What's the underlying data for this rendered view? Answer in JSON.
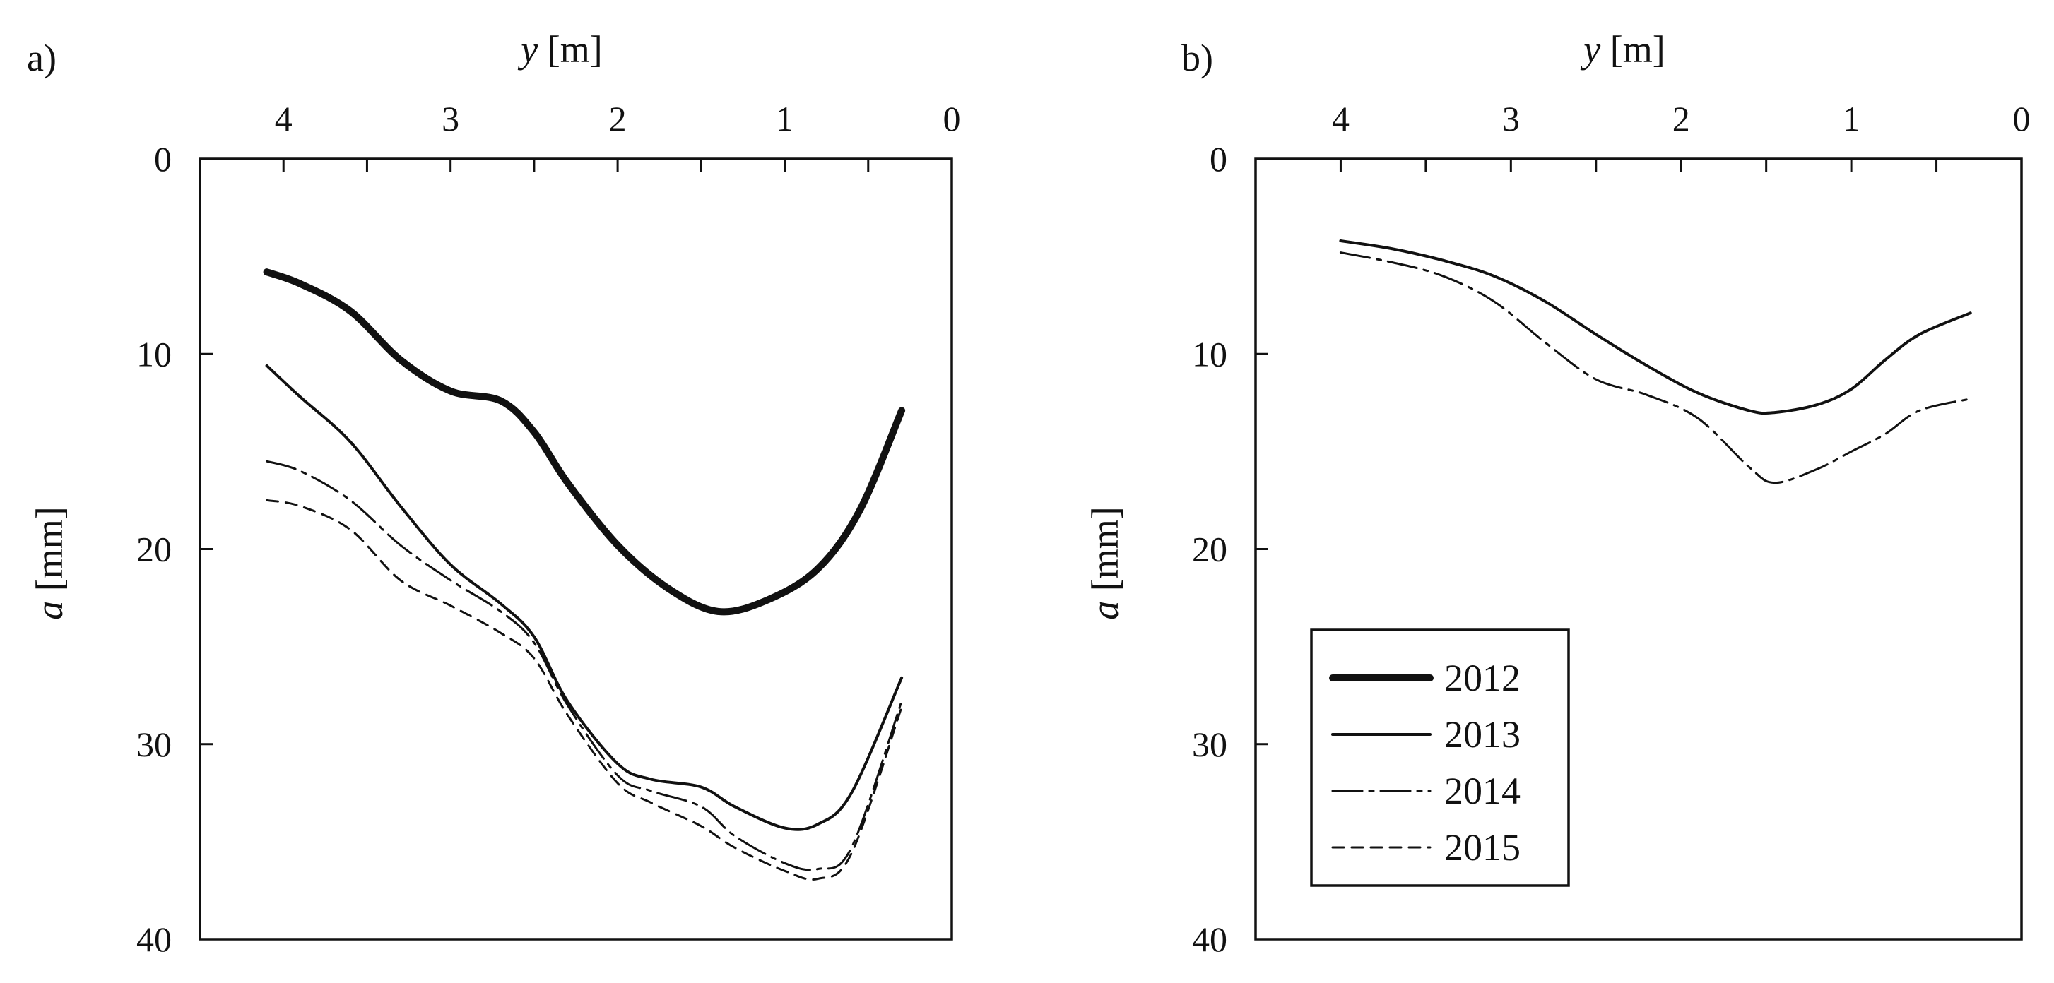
{
  "chart_data": [
    {
      "panel_label": "a)",
      "type": "line",
      "xlabel": {
        "var": "y",
        "unit": " [m]"
      },
      "ylabel": {
        "var": "a",
        "unit": " [mm]"
      },
      "x_axis_position": "top",
      "x_reversed": true,
      "y_reversed": true,
      "xlim": [
        4.5,
        0
      ],
      "ylim": [
        0,
        40
      ],
      "xticks": [
        "4",
        "3",
        "2",
        "1",
        "0"
      ],
      "yticks": [
        "0",
        "10",
        "20",
        "30",
        "40"
      ],
      "x_tick_values": [
        4,
        3,
        2,
        1,
        0
      ],
      "y_tick_values": [
        0,
        10,
        20,
        30,
        40
      ],
      "x_minor_step": 0.5,
      "y_minor_step": 10,
      "grid": false,
      "series": [
        {
          "name": "2012",
          "style": "thick",
          "x": [
            4.1,
            3.9,
            3.6,
            3.3,
            3.0,
            2.7,
            2.5,
            2.3,
            2.0,
            1.7,
            1.4,
            1.1,
            0.8,
            0.55,
            0.3
          ],
          "y": [
            5.8,
            6.4,
            7.8,
            10.3,
            11.9,
            12.4,
            14.0,
            16.6,
            19.8,
            22.0,
            23.2,
            22.6,
            21.0,
            18.0,
            12.9
          ]
        },
        {
          "name": "2013",
          "style": "solid",
          "x": [
            4.1,
            3.9,
            3.6,
            3.3,
            3.0,
            2.7,
            2.5,
            2.3,
            2.0,
            1.8,
            1.5,
            1.3,
            1.0,
            0.8,
            0.6,
            0.3
          ],
          "y": [
            10.6,
            12.2,
            14.5,
            17.8,
            20.8,
            22.8,
            24.5,
            27.8,
            31.0,
            31.8,
            32.2,
            33.2,
            34.3,
            34.1,
            32.5,
            26.6
          ]
        },
        {
          "name": "2014",
          "style": "longdash",
          "x": [
            4.1,
            3.9,
            3.6,
            3.3,
            3.0,
            2.7,
            2.5,
            2.3,
            2.0,
            1.8,
            1.5,
            1.3,
            1.0,
            0.8,
            0.6,
            0.3
          ],
          "y": [
            15.5,
            16.0,
            17.5,
            19.8,
            21.6,
            23.2,
            24.8,
            28.0,
            31.6,
            32.4,
            33.2,
            34.7,
            36.1,
            36.4,
            35.3,
            27.8
          ]
        },
        {
          "name": "2015",
          "style": "shortdash",
          "x": [
            4.1,
            3.9,
            3.6,
            3.3,
            3.0,
            2.7,
            2.5,
            2.3,
            2.0,
            1.8,
            1.5,
            1.3,
            1.0,
            0.8,
            0.6,
            0.3
          ],
          "y": [
            17.5,
            17.8,
            19.0,
            21.6,
            22.9,
            24.3,
            25.6,
            28.5,
            32.0,
            33.0,
            34.2,
            35.3,
            36.5,
            36.9,
            35.6,
            28.1
          ]
        }
      ]
    },
    {
      "panel_label": "b)",
      "type": "line",
      "xlabel": {
        "var": "y",
        "unit": " [m]"
      },
      "ylabel": {
        "var": "a",
        "unit": " [mm]"
      },
      "x_axis_position": "top",
      "x_reversed": true,
      "y_reversed": true,
      "xlim": [
        4.5,
        0
      ],
      "ylim": [
        0,
        40
      ],
      "xticks": [
        "4",
        "3",
        "2",
        "1",
        "0"
      ],
      "yticks": [
        "0",
        "10",
        "20",
        "30",
        "40"
      ],
      "x_tick_values": [
        4,
        3,
        2,
        1,
        0
      ],
      "y_tick_values": [
        0,
        10,
        20,
        30,
        40
      ],
      "x_minor_step": 0.5,
      "y_minor_step": 10,
      "grid": false,
      "series": [
        {
          "name": "2013",
          "style": "solid",
          "x": [
            4.0,
            3.7,
            3.4,
            3.1,
            2.8,
            2.5,
            2.2,
            1.9,
            1.6,
            1.45,
            1.2,
            1.0,
            0.8,
            0.6,
            0.3
          ],
          "y": [
            4.2,
            4.6,
            5.2,
            6.0,
            7.3,
            9.0,
            10.6,
            12.0,
            12.9,
            13.0,
            12.6,
            11.8,
            10.3,
            9.0,
            7.9
          ]
        },
        {
          "name": "2014",
          "style": "longdash",
          "x": [
            4.0,
            3.7,
            3.4,
            3.1,
            2.8,
            2.5,
            2.2,
            1.9,
            1.6,
            1.45,
            1.2,
            1.0,
            0.8,
            0.6,
            0.3
          ],
          "y": [
            4.8,
            5.3,
            6.0,
            7.3,
            9.4,
            11.3,
            12.1,
            13.3,
            15.8,
            16.6,
            15.9,
            15.0,
            14.1,
            12.9,
            12.3
          ]
        }
      ]
    }
  ],
  "legend": {
    "placement": "inside panel b), bottom-left",
    "entries": [
      {
        "label": "2012",
        "style": "thick"
      },
      {
        "label": "2013",
        "style": "solid"
      },
      {
        "label": "2014",
        "style": "longdash"
      },
      {
        "label": "2015",
        "style": "shortdash"
      }
    ]
  },
  "colors": {
    "ink": "#111111",
    "background": "#ffffff"
  }
}
